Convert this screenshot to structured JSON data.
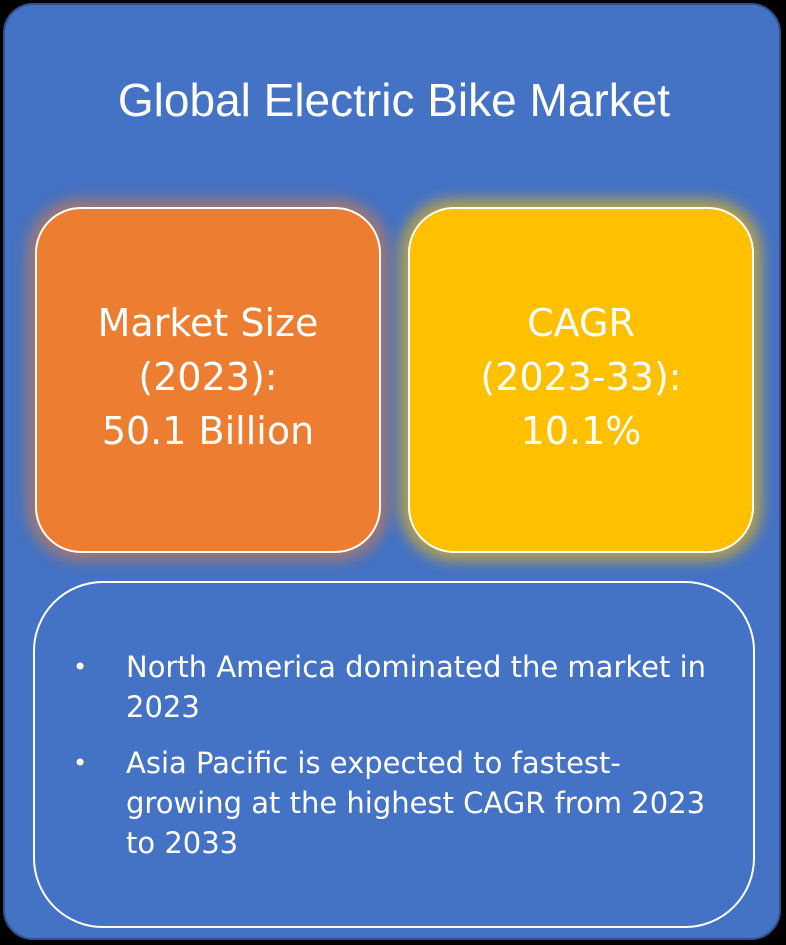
{
  "title": "Global Electric Bike Market",
  "cards": [
    {
      "lines": [
        "Market Size",
        "(2023):",
        "50.1 Billion"
      ],
      "color": "#ED7D31"
    },
    {
      "lines": [
        "CAGR",
        "(2023-33):",
        "10.1%"
      ],
      "color": "#FFC000"
    }
  ],
  "notes": [
    {
      "bullet": "•",
      "text": "North America dominated the market in 2023"
    },
    {
      "bullet": "•",
      "text": "Asia Pacific is expected to fastest-growing at the highest CAGR from 2023 to 2033"
    }
  ],
  "colors": {
    "background": "#4472C4",
    "text": "#FFFFFF"
  }
}
